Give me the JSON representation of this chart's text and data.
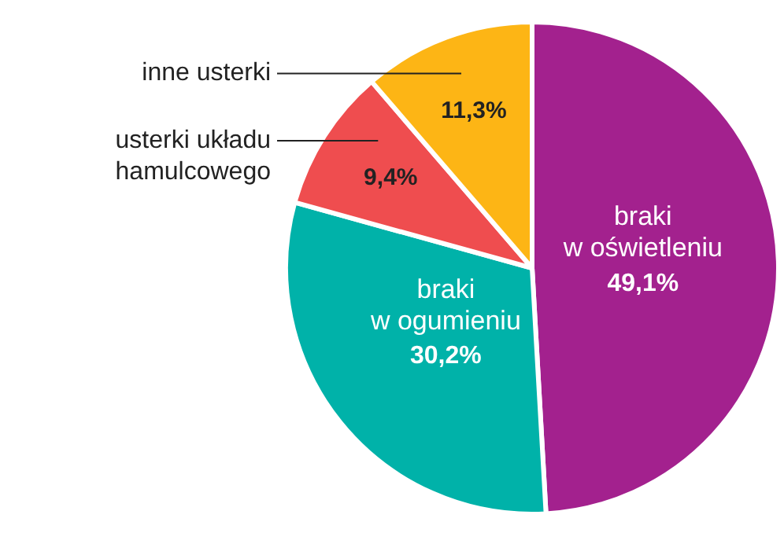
{
  "chart_data": {
    "type": "pie",
    "categories": [
      "braki\nw oświetleniu",
      "braki\nw ogumieniu",
      "usterki układu\nhamulcowego",
      "inne usterki"
    ],
    "values": [
      49.1,
      30.2,
      9.4,
      11.3
    ],
    "colors": [
      "#a3218e",
      "#00b2a9",
      "#ef4d4f",
      "#fdb515"
    ],
    "value_labels": [
      "49,1%",
      "30,2%",
      "9,4%",
      "11,3%"
    ],
    "legend": false
  }
}
